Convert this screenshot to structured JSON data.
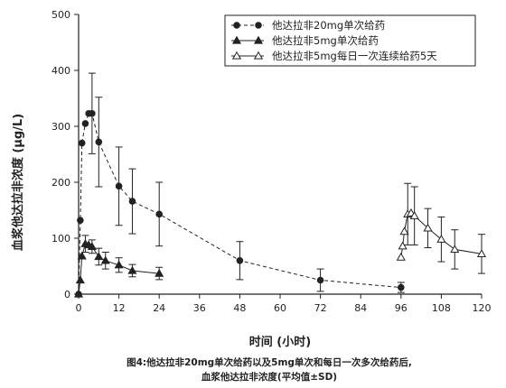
{
  "chart_data": {
    "type": "line",
    "title": "",
    "xlabel": "时间 (小时)",
    "ylabel": "血浆他达拉非浓度 (μg/L)",
    "xlim": [
      0,
      120
    ],
    "ylim": [
      0,
      500
    ],
    "xticks": [
      0,
      12,
      24,
      36,
      48,
      60,
      72,
      84,
      96,
      108,
      120
    ],
    "yticks": [
      0,
      100,
      200,
      300,
      400,
      500
    ],
    "grid": false,
    "legend_position": "top-right",
    "series": [
      {
        "name": "他达拉非20mg单次给药",
        "line": "dashed",
        "marker": "circle-filled",
        "x": [
          0,
          0.5,
          1,
          2,
          3,
          4,
          6,
          12,
          16,
          24,
          48,
          72,
          96
        ],
        "y": [
          0,
          132,
          270,
          305,
          323,
          323,
          272,
          193,
          166,
          143,
          60,
          25,
          12
        ],
        "err": [
          0,
          0,
          0,
          0,
          0,
          72,
          80,
          70,
          58,
          57,
          34,
          20,
          9
        ]
      },
      {
        "name": "他达拉非5mg单次给药",
        "line": "solid",
        "marker": "triangle-filled",
        "x": [
          0,
          0.5,
          1,
          2,
          3,
          4,
          6,
          8,
          12,
          16,
          24
        ],
        "y": [
          0,
          25,
          68,
          90,
          88,
          85,
          67,
          60,
          52,
          42,
          37
        ],
        "err": [
          0,
          0,
          0,
          15,
          0,
          12,
          15,
          15,
          13,
          11,
          11
        ]
      },
      {
        "name": "他达拉非5mg每日一次连续给药5天",
        "line": "solid",
        "marker": "triangle-open",
        "x": [
          96,
          96.5,
          97,
          98,
          99,
          100,
          104,
          108,
          112,
          120
        ],
        "y": [
          66,
          86,
          112,
          143,
          145,
          140,
          118,
          98,
          80,
          72
        ],
        "err": [
          0,
          0,
          0,
          55,
          0,
          52,
          35,
          40,
          35,
          35
        ]
      }
    ]
  },
  "caption": {
    "line1": "图4:他达拉非20mg单次给药以及5mg单次和每日一次多次给药后,",
    "line2": "血浆他达拉非浓度(平均值±SD)"
  }
}
